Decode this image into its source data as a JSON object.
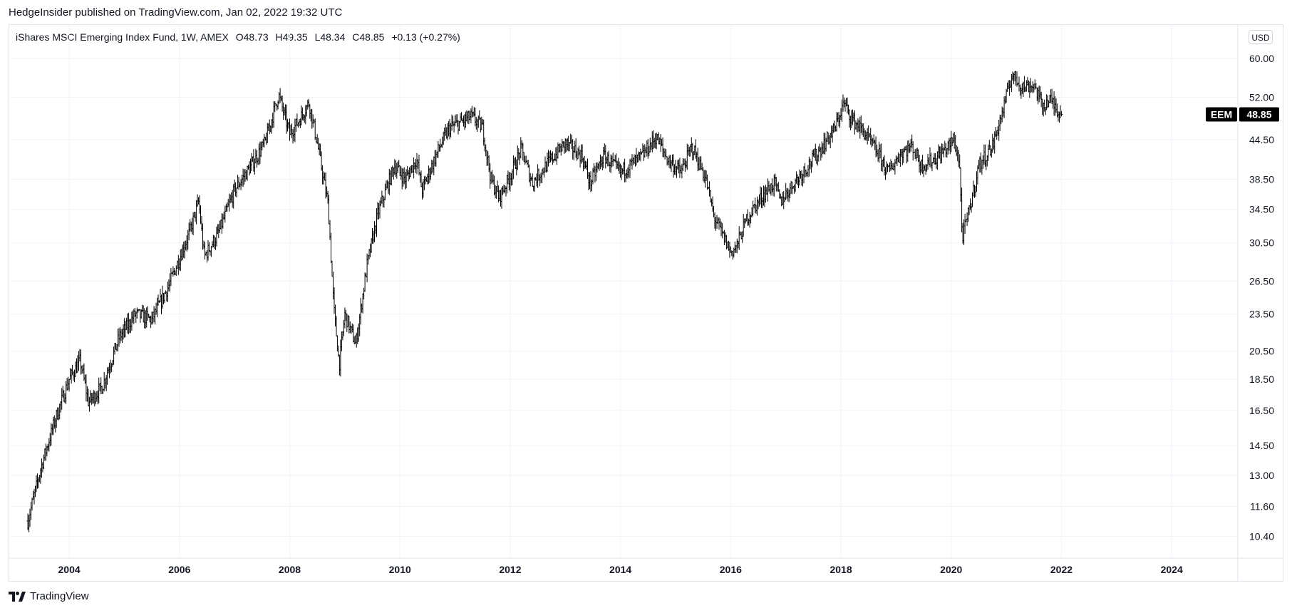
{
  "publisher_line": "HedgeInsider published on TradingView.com, Jan 02, 2022 19:32 UTC",
  "legend": {
    "symbol_line": "iShares MSCI Emerging Index Fund, 1W, AMEX",
    "open": "O48.73",
    "high": "H49.35",
    "low": "L48.34",
    "close": "C48.85",
    "change": "+0.13 (+0.27%)"
  },
  "currency_button": "USD",
  "ticker_badge": "EEM",
  "last_price_label": "48.85",
  "footer_brand": "TradingView",
  "colors": {
    "bar": "#000000",
    "grid": "#f0f3fa",
    "border": "#e0e3eb",
    "badge": "#000000"
  },
  "chart_data": {
    "type": "ohlc",
    "interval": "1W",
    "y_scale": "log",
    "ylim": [
      9.6,
      68
    ],
    "xlim": [
      2002.9,
      2025.2
    ],
    "y_ticks": [
      "60.00",
      "52.00",
      "44.50",
      "38.50",
      "34.50",
      "30.50",
      "26.50",
      "23.50",
      "20.50",
      "18.50",
      "16.50",
      "14.50",
      "13.00",
      "11.60",
      "10.40"
    ],
    "x_ticks": [
      "2004",
      "2006",
      "2008",
      "2010",
      "2012",
      "2014",
      "2016",
      "2018",
      "2020",
      "2022",
      "2024"
    ],
    "last_price": 48.85,
    "close_path": [
      {
        "t": 2003.25,
        "v": 11.0
      },
      {
        "t": 2003.5,
        "v": 13.5
      },
      {
        "t": 2003.75,
        "v": 16.0
      },
      {
        "t": 2004.0,
        "v": 18.5
      },
      {
        "t": 2004.2,
        "v": 19.8
      },
      {
        "t": 2004.35,
        "v": 17.0
      },
      {
        "t": 2004.6,
        "v": 18.0
      },
      {
        "t": 2004.9,
        "v": 21.5
      },
      {
        "t": 2005.2,
        "v": 23.5
      },
      {
        "t": 2005.5,
        "v": 23.0
      },
      {
        "t": 2005.8,
        "v": 26.0
      },
      {
        "t": 2006.2,
        "v": 32.0
      },
      {
        "t": 2006.35,
        "v": 35.5
      },
      {
        "t": 2006.45,
        "v": 29.0
      },
      {
        "t": 2006.7,
        "v": 31.5
      },
      {
        "t": 2007.0,
        "v": 37.0
      },
      {
        "t": 2007.3,
        "v": 40.5
      },
      {
        "t": 2007.55,
        "v": 44.0
      },
      {
        "t": 2007.8,
        "v": 52.5
      },
      {
        "t": 2008.0,
        "v": 45.5
      },
      {
        "t": 2008.15,
        "v": 47.5
      },
      {
        "t": 2008.35,
        "v": 51.0
      },
      {
        "t": 2008.5,
        "v": 44.0
      },
      {
        "t": 2008.7,
        "v": 35.0
      },
      {
        "t": 2008.8,
        "v": 24.0
      },
      {
        "t": 2008.9,
        "v": 19.5
      },
      {
        "t": 2009.0,
        "v": 23.5
      },
      {
        "t": 2009.2,
        "v": 21.0
      },
      {
        "t": 2009.4,
        "v": 28.0
      },
      {
        "t": 2009.6,
        "v": 34.0
      },
      {
        "t": 2009.9,
        "v": 40.5
      },
      {
        "t": 2010.1,
        "v": 38.5
      },
      {
        "t": 2010.3,
        "v": 41.5
      },
      {
        "t": 2010.4,
        "v": 37.0
      },
      {
        "t": 2010.7,
        "v": 43.0
      },
      {
        "t": 2010.9,
        "v": 46.5
      },
      {
        "t": 2011.3,
        "v": 48.5
      },
      {
        "t": 2011.5,
        "v": 46.5
      },
      {
        "t": 2011.65,
        "v": 38.5
      },
      {
        "t": 2011.8,
        "v": 36.0
      },
      {
        "t": 2012.0,
        "v": 39.0
      },
      {
        "t": 2012.2,
        "v": 43.0
      },
      {
        "t": 2012.4,
        "v": 38.0
      },
      {
        "t": 2012.7,
        "v": 41.0
      },
      {
        "t": 2013.0,
        "v": 44.0
      },
      {
        "t": 2013.3,
        "v": 42.0
      },
      {
        "t": 2013.45,
        "v": 38.0
      },
      {
        "t": 2013.7,
        "v": 42.0
      },
      {
        "t": 2014.0,
        "v": 39.5
      },
      {
        "t": 2014.4,
        "v": 42.0
      },
      {
        "t": 2014.65,
        "v": 45.0
      },
      {
        "t": 2014.85,
        "v": 41.5
      },
      {
        "t": 2015.1,
        "v": 39.5
      },
      {
        "t": 2015.3,
        "v": 43.5
      },
      {
        "t": 2015.55,
        "v": 38.5
      },
      {
        "t": 2015.7,
        "v": 33.5
      },
      {
        "t": 2016.0,
        "v": 29.5
      },
      {
        "t": 2016.1,
        "v": 30.0
      },
      {
        "t": 2016.3,
        "v": 33.5
      },
      {
        "t": 2016.6,
        "v": 36.5
      },
      {
        "t": 2016.8,
        "v": 38.0
      },
      {
        "t": 2016.9,
        "v": 35.5
      },
      {
        "t": 2017.2,
        "v": 38.5
      },
      {
        "t": 2017.5,
        "v": 41.5
      },
      {
        "t": 2017.9,
        "v": 46.5
      },
      {
        "t": 2018.05,
        "v": 51.0
      },
      {
        "t": 2018.2,
        "v": 48.0
      },
      {
        "t": 2018.4,
        "v": 46.0
      },
      {
        "t": 2018.7,
        "v": 42.0
      },
      {
        "t": 2018.85,
        "v": 39.5
      },
      {
        "t": 2019.1,
        "v": 42.5
      },
      {
        "t": 2019.3,
        "v": 43.5
      },
      {
        "t": 2019.45,
        "v": 40.5
      },
      {
        "t": 2019.7,
        "v": 41.5
      },
      {
        "t": 2019.9,
        "v": 43.0
      },
      {
        "t": 2020.05,
        "v": 44.5
      },
      {
        "t": 2020.15,
        "v": 41.0
      },
      {
        "t": 2020.2,
        "v": 31.0
      },
      {
        "t": 2020.35,
        "v": 35.0
      },
      {
        "t": 2020.5,
        "v": 40.5
      },
      {
        "t": 2020.75,
        "v": 43.5
      },
      {
        "t": 2020.95,
        "v": 50.0
      },
      {
        "t": 2021.1,
        "v": 56.5
      },
      {
        "t": 2021.3,
        "v": 54.0
      },
      {
        "t": 2021.5,
        "v": 54.5
      },
      {
        "t": 2021.65,
        "v": 50.5
      },
      {
        "t": 2021.8,
        "v": 51.5
      },
      {
        "t": 2022.0,
        "v": 48.85
      }
    ]
  }
}
